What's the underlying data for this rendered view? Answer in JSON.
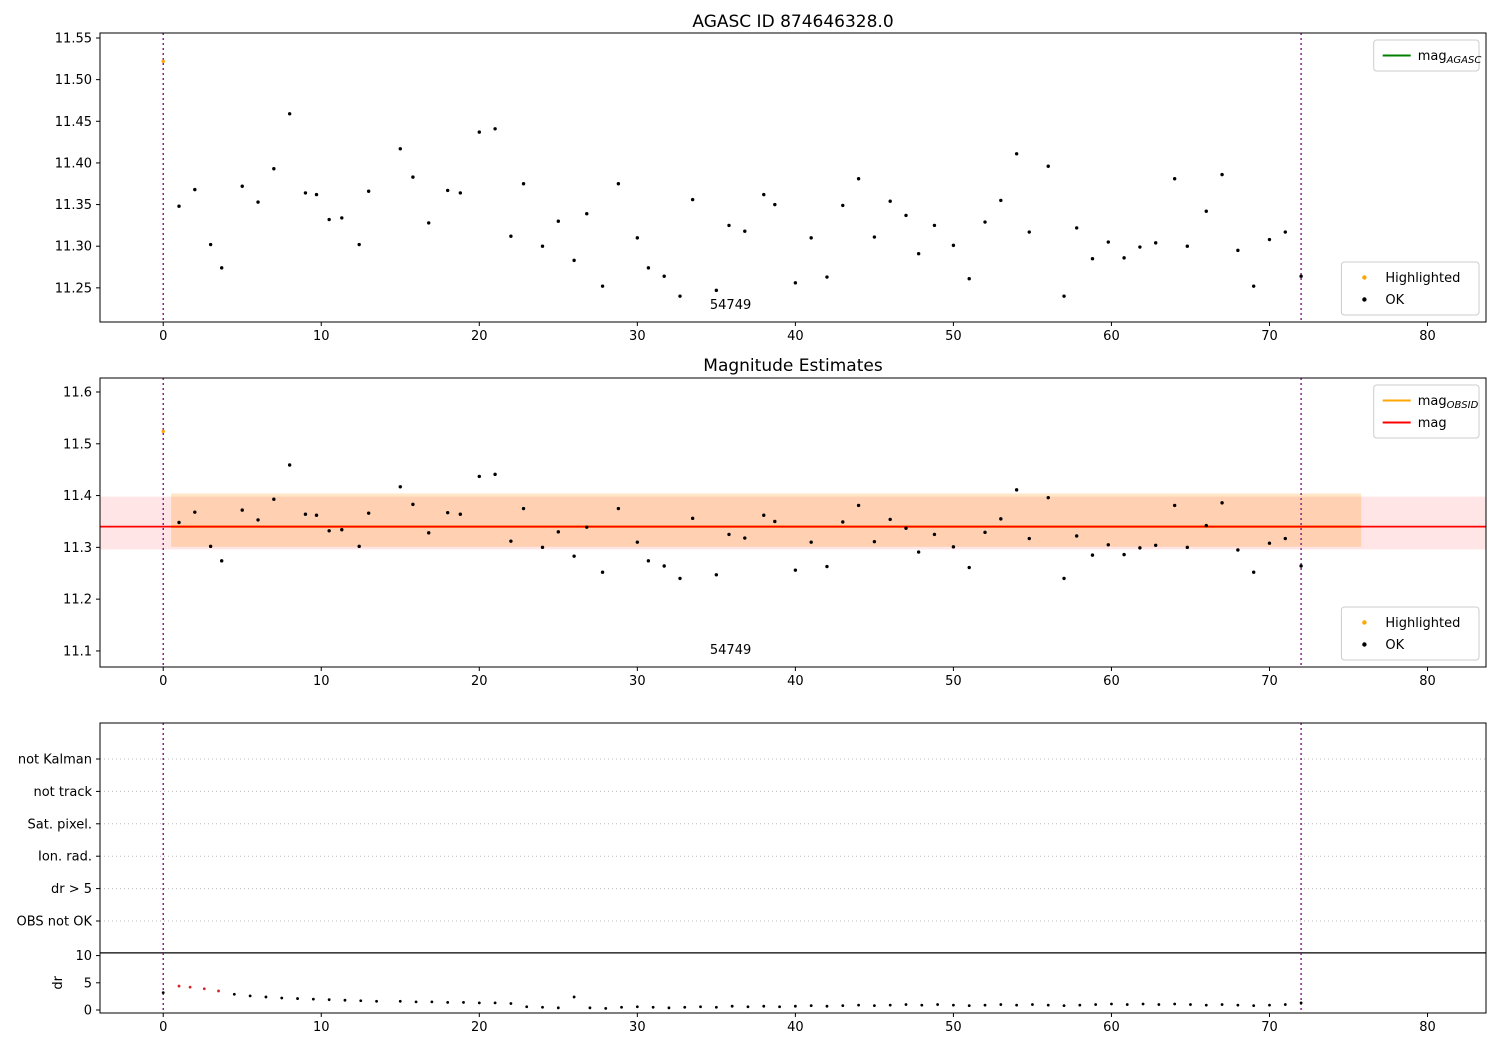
{
  "figure": {
    "background": "#ffffff"
  },
  "chart_data": [
    {
      "id": "agasc-mag-chart",
      "type": "scatter",
      "title": "AGASC ID 874646328.0",
      "xlim": [
        -4.0,
        83.7
      ],
      "ylim": [
        11.209,
        11.556
      ],
      "xticks": [
        0,
        10,
        20,
        30,
        40,
        50,
        60,
        70,
        80
      ],
      "yticks": [
        "11.25",
        "11.30",
        "11.35",
        "11.40",
        "11.45",
        "11.50",
        "11.55"
      ],
      "vlines": [
        0,
        72
      ],
      "vline_color": "#800080",
      "point_color": "#000000",
      "highlight_color": "#ffa500",
      "annotation": {
        "text": "54749",
        "x": 35.9
      },
      "legends": {
        "top_right": [
          {
            "label": "mag",
            "subscript": "AGASC",
            "marker": "line",
            "color": "#008000"
          }
        ],
        "bottom_right": [
          {
            "label": "Highlighted",
            "marker": "dot",
            "color": "#ffa500"
          },
          {
            "label": "OK",
            "marker": "dot",
            "color": "#000000"
          }
        ]
      },
      "highlighted": [
        {
          "x": 0,
          "y": 11.522
        }
      ],
      "x": [
        1,
        2,
        3,
        3.7,
        5,
        6,
        7,
        8,
        9,
        9.7,
        10.5,
        11.3,
        12.4,
        13,
        15,
        15.8,
        16.8,
        18,
        18.8,
        20,
        21,
        22,
        22.8,
        24,
        25,
        26,
        26.8,
        27.8,
        28.8,
        30,
        30.7,
        31.7,
        32.7,
        33.5,
        35,
        35.8,
        36.8,
        38,
        38.7,
        40,
        41,
        42,
        43,
        44,
        45,
        46,
        47,
        47.8,
        48.8,
        50,
        51,
        52,
        53,
        54,
        54.8,
        56,
        57,
        57.8,
        58.8,
        59.8,
        60.8,
        61.8,
        62.8,
        64,
        64.8,
        66,
        67,
        68,
        69,
        70,
        71,
        72
      ],
      "y": [
        11.348,
        11.368,
        11.302,
        11.274,
        11.372,
        11.353,
        11.393,
        11.459,
        11.364,
        11.362,
        11.332,
        11.334,
        11.302,
        11.366,
        11.417,
        11.383,
        11.328,
        11.367,
        11.364,
        11.437,
        11.441,
        11.312,
        11.375,
        11.3,
        11.33,
        11.283,
        11.339,
        11.252,
        11.375,
        11.31,
        11.274,
        11.264,
        11.24,
        11.356,
        11.247,
        11.325,
        11.318,
        11.362,
        11.35,
        11.256,
        11.31,
        11.263,
        11.349,
        11.381,
        11.311,
        11.354,
        11.337,
        11.291,
        11.325,
        11.301,
        11.261,
        11.329,
        11.355,
        11.411,
        11.317,
        11.396,
        11.24,
        11.322,
        11.285,
        11.305,
        11.286,
        11.299,
        11.304,
        11.381,
        11.3,
        11.342,
        11.386,
        11.295,
        11.252,
        11.308,
        11.317,
        11.264
      ]
    },
    {
      "id": "mag-estimates-chart",
      "type": "scatter",
      "title": "Magnitude Estimates",
      "xlim": [
        -4.0,
        83.7
      ],
      "ylim": [
        11.069,
        11.627
      ],
      "xticks": [
        0,
        10,
        20,
        30,
        40,
        50,
        60,
        70,
        80
      ],
      "yticks": [
        "11.1",
        "11.2",
        "11.3",
        "11.4",
        "11.5",
        "11.6"
      ],
      "vlines": [
        0,
        72
      ],
      "vline_color": "#800080",
      "point_color": "#000000",
      "highlight_color": "#ffa500",
      "annotation": {
        "text": "54749",
        "x": 35.9
      },
      "mag_line": {
        "value": 11.34,
        "color": "#ff0000"
      },
      "obsid_line": {
        "value": 11.34,
        "x0": 0.5,
        "x1": 75.8,
        "color": "#ffa500"
      },
      "bands": [
        {
          "x0": -4.0,
          "x1": 83.7,
          "y0": 11.296,
          "y1": 11.398,
          "color": "rgba(255,0,0,0.10)"
        },
        {
          "x0": 0.5,
          "x1": 75.8,
          "y0": 11.301,
          "y1": 11.404,
          "color": "rgba(255,140,0,0.22)"
        }
      ],
      "legends": {
        "top_right": [
          {
            "label": "mag",
            "subscript": "OBSID",
            "marker": "line",
            "color": "#ffa500"
          },
          {
            "label": "mag",
            "subscript": "",
            "marker": "line",
            "color": "#ff0000"
          }
        ],
        "bottom_right": [
          {
            "label": "Highlighted",
            "marker": "dot",
            "color": "#ffa500"
          },
          {
            "label": "OK",
            "marker": "dot",
            "color": "#000000"
          }
        ]
      },
      "highlighted": [
        {
          "x": 0,
          "y": 11.524
        }
      ],
      "x": [
        1,
        2,
        3,
        3.7,
        5,
        6,
        7,
        8,
        9,
        9.7,
        10.5,
        11.3,
        12.4,
        13,
        15,
        15.8,
        16.8,
        18,
        18.8,
        20,
        21,
        22,
        22.8,
        24,
        25,
        26,
        26.8,
        27.8,
        28.8,
        30,
        30.7,
        31.7,
        32.7,
        33.5,
        35,
        35.8,
        36.8,
        38,
        38.7,
        40,
        41,
        42,
        43,
        44,
        45,
        46,
        47,
        47.8,
        48.8,
        50,
        51,
        52,
        53,
        54,
        54.8,
        56,
        57,
        57.8,
        58.8,
        59.8,
        60.8,
        61.8,
        62.8,
        64,
        64.8,
        66,
        67,
        68,
        69,
        70,
        71,
        72
      ],
      "y": [
        11.348,
        11.368,
        11.302,
        11.274,
        11.372,
        11.353,
        11.393,
        11.459,
        11.364,
        11.362,
        11.332,
        11.334,
        11.302,
        11.366,
        11.417,
        11.383,
        11.328,
        11.367,
        11.364,
        11.437,
        11.441,
        11.312,
        11.375,
        11.3,
        11.33,
        11.283,
        11.339,
        11.252,
        11.375,
        11.31,
        11.274,
        11.264,
        11.24,
        11.356,
        11.247,
        11.325,
        11.318,
        11.362,
        11.35,
        11.256,
        11.31,
        11.263,
        11.349,
        11.381,
        11.311,
        11.354,
        11.337,
        11.291,
        11.325,
        11.301,
        11.261,
        11.329,
        11.355,
        11.411,
        11.317,
        11.396,
        11.24,
        11.322,
        11.285,
        11.305,
        11.286,
        11.299,
        11.304,
        11.381,
        11.3,
        11.342,
        11.386,
        11.295,
        11.252,
        11.308,
        11.317,
        11.264
      ]
    },
    {
      "id": "flags-dr-chart",
      "type": "flags",
      "categories": [
        "not Kalman",
        "not track",
        "Sat. pixel.",
        "Ion. rad.",
        "dr > 5",
        "OBS not OK"
      ],
      "dr_axis": {
        "label": "dr",
        "ticks": [
          0,
          5,
          10
        ]
      },
      "separator_dr": 10.5,
      "xlim": [
        -4.0,
        83.7
      ],
      "xticks": [
        0,
        10,
        20,
        30,
        40,
        50,
        60,
        70,
        80
      ],
      "vlines": [
        0,
        72
      ],
      "vline_color": "#800080",
      "point_color": "#000000",
      "bad_color": "#d62728",
      "bad_indices": [
        1,
        2,
        3,
        4
      ],
      "x": [
        0,
        1,
        1.7,
        2.6,
        3.5,
        4.5,
        5.5,
        6.5,
        7.5,
        8.5,
        9.5,
        10.5,
        11.5,
        12.5,
        13.5,
        15,
        16,
        17,
        18,
        19,
        20,
        21,
        22,
        23,
        24,
        25,
        26,
        27,
        28,
        29,
        30,
        31,
        32,
        33,
        34,
        35,
        36,
        37,
        38,
        39,
        40,
        41,
        42,
        43,
        44,
        45,
        46,
        47,
        48,
        49,
        50,
        51,
        52,
        53,
        54,
        55,
        56,
        57,
        58,
        59,
        60,
        61,
        62,
        63,
        64,
        65,
        66,
        67,
        68,
        69,
        70,
        71,
        72
      ],
      "dr": [
        3.2,
        4.4,
        4.2,
        3.9,
        3.5,
        2.9,
        2.6,
        2.4,
        2.2,
        2.1,
        2.0,
        1.9,
        1.8,
        1.7,
        1.6,
        1.6,
        1.5,
        1.5,
        1.4,
        1.4,
        1.3,
        1.3,
        1.2,
        0.6,
        0.5,
        0.4,
        2.4,
        0.4,
        0.3,
        0.5,
        0.6,
        0.5,
        0.4,
        0.5,
        0.6,
        0.5,
        0.7,
        0.6,
        0.7,
        0.6,
        0.7,
        0.8,
        0.7,
        0.8,
        0.9,
        0.8,
        0.9,
        1.0,
        0.9,
        1.0,
        0.9,
        0.8,
        0.9,
        1.0,
        0.9,
        1.0,
        0.9,
        0.8,
        0.9,
        1.0,
        1.1,
        1.0,
        1.1,
        1.0,
        1.1,
        1.0,
        0.9,
        1.0,
        0.9,
        0.8,
        0.9,
        1.0,
        1.3
      ]
    }
  ]
}
